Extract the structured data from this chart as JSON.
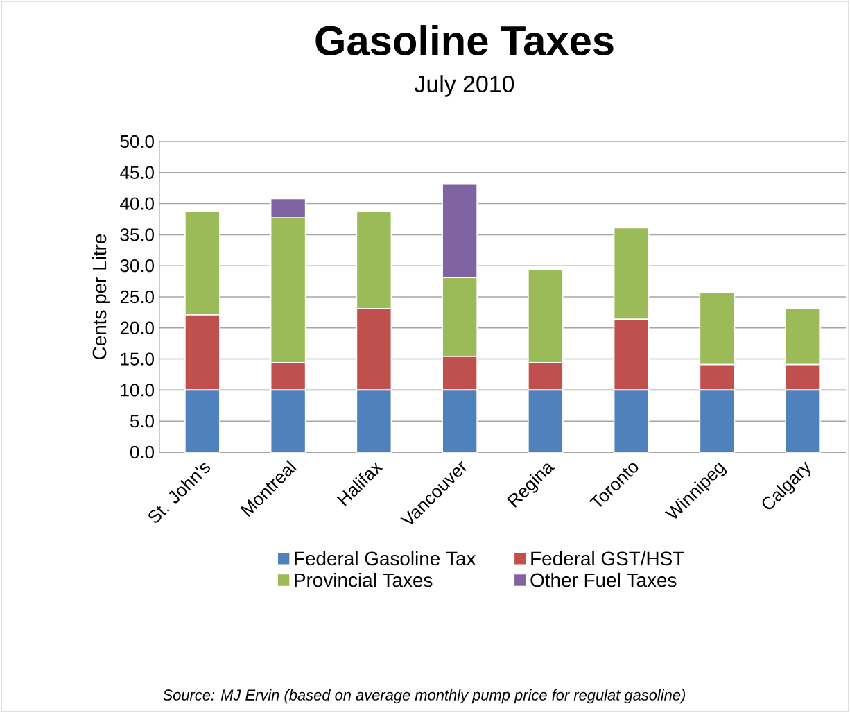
{
  "chart_data": {
    "type": "bar",
    "stacked": true,
    "title": "Gasoline Taxes",
    "subtitle": "July 2010",
    "ylabel": "Cents per Litre",
    "categories": [
      "St. John's",
      "Montreal",
      "Halifax",
      "Vancouver",
      "Regina",
      "Toronto",
      "Winnipeg",
      "Calgary"
    ],
    "series": [
      {
        "name": "Federal Gasoline Tax",
        "color": "#4f81bd",
        "values": [
          10,
          10,
          10,
          10,
          10,
          10,
          10,
          10
        ]
      },
      {
        "name": "Federal GST/HST",
        "color": "#c0504d",
        "values": [
          12.1,
          4.4,
          13.1,
          5.4,
          4.4,
          11.4,
          4.1,
          4.1
        ]
      },
      {
        "name": "Provincial Taxes",
        "color": "#9bbb59",
        "values": [
          16.6,
          23.3,
          15.6,
          12.7,
          15.0,
          14.7,
          11.6,
          9.0
        ]
      },
      {
        "name": "Other Fuel Taxes",
        "color": "#8064a2",
        "values": [
          null,
          3.1,
          null,
          15.0,
          null,
          null,
          null,
          null
        ]
      }
    ],
    "ylim": [
      0,
      50
    ],
    "yticks": [
      {
        "value": 0,
        "label": "0.0"
      },
      {
        "value": 5,
        "label": "5.0"
      },
      {
        "value": 10,
        "label": "10.0"
      },
      {
        "value": 15,
        "label": "15.0"
      },
      {
        "value": 20,
        "label": "20.0"
      },
      {
        "value": 25,
        "label": "25.0"
      },
      {
        "value": 30,
        "label": "30.0"
      },
      {
        "value": 35,
        "label": "35.0"
      },
      {
        "value": 40,
        "label": "40.0"
      },
      {
        "value": 45,
        "label": "45.0"
      },
      {
        "value": 50,
        "label": "50.0"
      }
    ],
    "grid": "y",
    "legend": "bottom",
    "annotations": [
      "*Source: MJ Ervin (based on average monthly pump price for regulat gasoline)*"
    ]
  }
}
